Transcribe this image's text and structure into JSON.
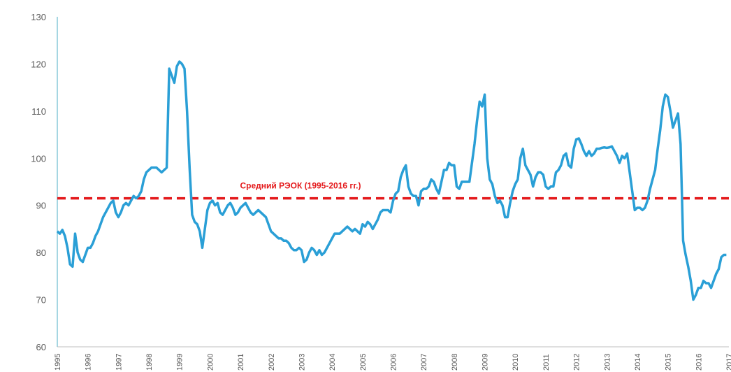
{
  "chart_data": {
    "type": "line",
    "categories": [
      "1995",
      null,
      null,
      null,
      null,
      null,
      null,
      null,
      null,
      null,
      null,
      null,
      "1996",
      null,
      null,
      null,
      null,
      null,
      null,
      null,
      null,
      null,
      null,
      null,
      "1997",
      null,
      null,
      null,
      null,
      null,
      null,
      null,
      null,
      null,
      null,
      null,
      "1998",
      null,
      null,
      null,
      null,
      null,
      null,
      null,
      null,
      null,
      null,
      null,
      "1999",
      null,
      null,
      null,
      null,
      null,
      null,
      null,
      null,
      null,
      null,
      null,
      "2000",
      null,
      null,
      null,
      null,
      null,
      null,
      null,
      null,
      null,
      null,
      null,
      "2001",
      null,
      null,
      null,
      null,
      null,
      null,
      null,
      null,
      null,
      null,
      null,
      "2002",
      null,
      null,
      null,
      null,
      null,
      null,
      null,
      null,
      null,
      null,
      null,
      "2003",
      null,
      null,
      null,
      null,
      null,
      null,
      null,
      null,
      null,
      null,
      null,
      "2004",
      null,
      null,
      null,
      null,
      null,
      null,
      null,
      null,
      null,
      null,
      null,
      "2005",
      null,
      null,
      null,
      null,
      null,
      null,
      null,
      null,
      null,
      null,
      null,
      "2006",
      null,
      null,
      null,
      null,
      null,
      null,
      null,
      null,
      null,
      null,
      null,
      "2007",
      null,
      null,
      null,
      null,
      null,
      null,
      null,
      null,
      null,
      null,
      null,
      "2008",
      null,
      null,
      null,
      null,
      null,
      null,
      null,
      null,
      null,
      null,
      null,
      "2009",
      null,
      null,
      null,
      null,
      null,
      null,
      null,
      null,
      null,
      null,
      null,
      "2010",
      null,
      null,
      null,
      null,
      null,
      null,
      null,
      null,
      null,
      null,
      null,
      "2011",
      null,
      null,
      null,
      null,
      null,
      null,
      null,
      null,
      null,
      null,
      null,
      "2012",
      null,
      null,
      null,
      null,
      null,
      null,
      null,
      null,
      null,
      null,
      null,
      "2013",
      null,
      null,
      null,
      null,
      null,
      null,
      null,
      null,
      null,
      null,
      null,
      "2014",
      null,
      null,
      null,
      null,
      null,
      null,
      null,
      null,
      null,
      null,
      null,
      "2015",
      null,
      null,
      null,
      null,
      null,
      null,
      null,
      null,
      null,
      null,
      null,
      "2016",
      null,
      null,
      null,
      null,
      null,
      null,
      null,
      null,
      null,
      null,
      null,
      "2017"
    ],
    "series": [
      {
        "color": "#2a9fd6",
        "values": [
          84.5,
          84,
          84.8,
          83.5,
          81,
          77.5,
          77,
          84,
          80,
          78.5,
          78,
          79.5,
          81,
          81,
          82,
          83.5,
          84.5,
          86,
          87.5,
          88.5,
          89.5,
          90.5,
          91,
          88.5,
          87.5,
          88.5,
          90,
          90.5,
          90,
          91,
          92,
          91.5,
          92,
          93,
          95.5,
          97,
          97.5,
          98,
          98,
          98,
          97.5,
          97,
          97.5,
          98,
          119,
          117.5,
          116,
          119.5,
          120.5,
          120,
          119,
          110,
          98,
          88,
          86.5,
          86,
          84.5,
          81,
          85,
          89,
          90.5,
          91,
          90,
          90.5,
          88.5,
          88,
          89,
          90,
          90.5,
          89.5,
          88,
          88.5,
          89.5,
          90,
          90.5,
          89.5,
          88.5,
          88,
          88.5,
          89,
          88.5,
          88,
          87.5,
          86,
          84.5,
          84,
          83.5,
          83,
          83,
          82.5,
          82.5,
          82,
          81,
          80.5,
          80.5,
          81,
          80.5,
          78,
          78.5,
          80,
          81,
          80.5,
          79.5,
          80.5,
          79.5,
          80,
          81,
          82,
          83,
          84,
          84,
          84,
          84.5,
          85,
          85.5,
          85,
          84.5,
          85,
          84.5,
          84,
          86,
          85.5,
          86.5,
          86,
          85,
          86,
          87,
          88.5,
          89,
          89,
          89,
          88.5,
          91,
          92.5,
          93,
          96,
          97.5,
          98.5,
          94,
          92.5,
          92,
          92,
          90,
          93,
          93.5,
          93.5,
          94,
          95.5,
          95,
          93.5,
          92.5,
          95,
          97.5,
          97.5,
          99,
          98.5,
          98.5,
          94,
          93.5,
          95,
          95,
          95,
          95,
          99,
          103,
          108,
          112,
          111,
          113.5,
          100,
          95.5,
          94.5,
          92,
          90.5,
          91,
          90,
          87.5,
          87.5,
          90.5,
          93,
          94.5,
          95.5,
          100,
          102,
          98.5,
          97.5,
          96.5,
          94,
          96,
          97,
          97,
          96.5,
          94,
          93.5,
          94,
          94,
          97,
          97.5,
          98.5,
          100.5,
          101,
          98.5,
          98,
          102,
          104,
          104.2,
          103,
          101.5,
          100.5,
          101.5,
          100.5,
          101,
          102,
          102,
          102.2,
          102.3,
          102.2,
          102.3,
          102.5,
          101.5,
          100.5,
          99,
          100.5,
          100,
          101,
          97,
          93,
          89,
          89.5,
          89.5,
          89,
          89.5,
          91,
          93.5,
          95.5,
          97.5,
          102,
          106,
          111,
          113.5,
          113,
          110,
          106.5,
          108,
          109.5,
          103,
          82.5,
          79.5,
          77,
          74,
          70,
          71,
          72.5,
          72.5,
          74,
          73.5,
          73.5,
          72.5,
          74,
          75.5,
          76.5,
          79,
          79.5,
          79.5,
          null
        ]
      }
    ],
    "reference_lines": [
      {
        "label": "Средний РЭОК (1995-2016 гг.)",
        "value": 91.5,
        "color": "#e41a1c"
      }
    ],
    "ylim": [
      60,
      130
    ],
    "yticks": [
      60,
      70,
      80,
      90,
      100,
      110,
      120,
      130
    ],
    "grid": false
  }
}
